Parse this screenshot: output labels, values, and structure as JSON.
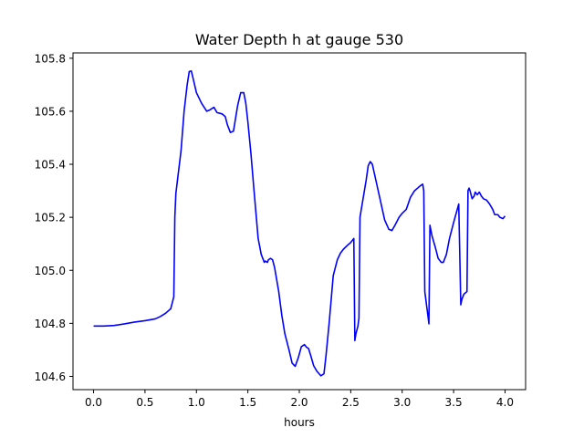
{
  "chart_data": {
    "type": "line",
    "title": "Water Depth h at gauge 530",
    "xlabel": "hours",
    "ylabel": "",
    "xlim": [
      -0.2,
      4.2
    ],
    "ylim": [
      104.55,
      105.82
    ],
    "xticks": [
      0.0,
      0.5,
      1.0,
      1.5,
      2.0,
      2.5,
      3.0,
      3.5,
      4.0
    ],
    "xtick_labels": [
      "0.0",
      "0.5",
      "1.0",
      "1.5",
      "2.0",
      "2.5",
      "3.0",
      "3.5",
      "4.0"
    ],
    "yticks": [
      104.6,
      104.8,
      105.0,
      105.2,
      105.4,
      105.6,
      105.8
    ],
    "ytick_labels": [
      "104.6",
      "104.8",
      "105.0",
      "105.2",
      "105.4",
      "105.6",
      "105.8"
    ],
    "grid": false,
    "legend": "none",
    "series": [
      {
        "color": "#0000ff",
        "x": [
          0.0,
          0.1,
          0.2,
          0.3,
          0.4,
          0.5,
          0.6,
          0.65,
          0.7,
          0.75,
          0.78,
          0.79,
          0.8,
          0.85,
          0.88,
          0.91,
          0.93,
          0.95,
          0.97,
          1.0,
          1.05,
          1.1,
          1.13,
          1.17,
          1.2,
          1.25,
          1.28,
          1.3,
          1.33,
          1.36,
          1.4,
          1.43,
          1.46,
          1.48,
          1.5,
          1.53,
          1.56,
          1.6,
          1.63,
          1.66,
          1.67,
          1.69,
          1.7,
          1.72,
          1.74,
          1.76,
          1.8,
          1.83,
          1.86,
          1.9,
          1.93,
          1.96,
          1.99,
          2.02,
          2.05,
          2.07,
          2.09,
          2.11,
          2.14,
          2.17,
          2.21,
          2.24,
          2.26,
          2.29,
          2.33,
          2.37,
          2.4,
          2.43,
          2.47,
          2.5,
          2.53,
          2.54,
          2.55,
          2.57,
          2.58,
          2.59,
          2.62,
          2.65,
          2.67,
          2.69,
          2.71,
          2.75,
          2.79,
          2.83,
          2.87,
          2.9,
          2.93,
          2.97,
          3.0,
          3.04,
          3.08,
          3.12,
          3.15,
          3.18,
          3.2,
          3.21,
          3.22,
          3.25,
          3.26,
          3.27,
          3.29,
          3.32,
          3.35,
          3.38,
          3.4,
          3.43,
          3.46,
          3.5,
          3.55,
          3.57,
          3.58,
          3.6,
          3.63,
          3.64,
          3.65,
          3.66,
          3.68,
          3.7,
          3.71,
          3.73,
          3.75,
          3.77,
          3.79,
          3.82,
          3.85,
          3.88,
          3.9,
          3.93,
          3.95,
          3.98,
          4.0
        ],
        "y": [
          104.79,
          104.79,
          104.792,
          104.798,
          104.805,
          104.81,
          104.817,
          104.826,
          104.838,
          104.855,
          104.9,
          105.2,
          105.29,
          105.45,
          105.6,
          105.7,
          105.75,
          105.752,
          105.72,
          105.67,
          105.63,
          105.6,
          105.605,
          105.615,
          105.595,
          105.59,
          105.58,
          105.55,
          105.52,
          105.525,
          105.62,
          105.67,
          105.67,
          105.63,
          105.56,
          105.44,
          105.3,
          105.12,
          105.06,
          105.03,
          105.035,
          105.03,
          105.04,
          105.045,
          105.04,
          105.01,
          104.92,
          104.83,
          104.76,
          104.7,
          104.65,
          104.638,
          104.67,
          104.712,
          104.72,
          104.71,
          104.705,
          104.68,
          104.64,
          104.62,
          104.602,
          104.61,
          104.68,
          104.8,
          104.98,
          105.04,
          105.065,
          105.08,
          105.095,
          105.105,
          105.12,
          104.735,
          104.76,
          104.79,
          104.82,
          105.2,
          105.27,
          105.34,
          105.395,
          105.41,
          105.4,
          105.33,
          105.26,
          105.19,
          105.155,
          105.15,
          105.17,
          105.2,
          105.215,
          105.23,
          105.275,
          105.3,
          105.31,
          105.32,
          105.325,
          105.3,
          104.92,
          104.83,
          104.798,
          105.17,
          105.13,
          105.09,
          105.045,
          105.03,
          105.03,
          105.06,
          105.12,
          105.18,
          105.25,
          104.87,
          104.89,
          104.91,
          104.92,
          105.3,
          105.31,
          105.3,
          105.27,
          105.28,
          105.295,
          105.285,
          105.295,
          105.28,
          105.27,
          105.265,
          105.25,
          105.23,
          105.21,
          105.21,
          105.2,
          105.195,
          105.205
        ]
      }
    ]
  }
}
